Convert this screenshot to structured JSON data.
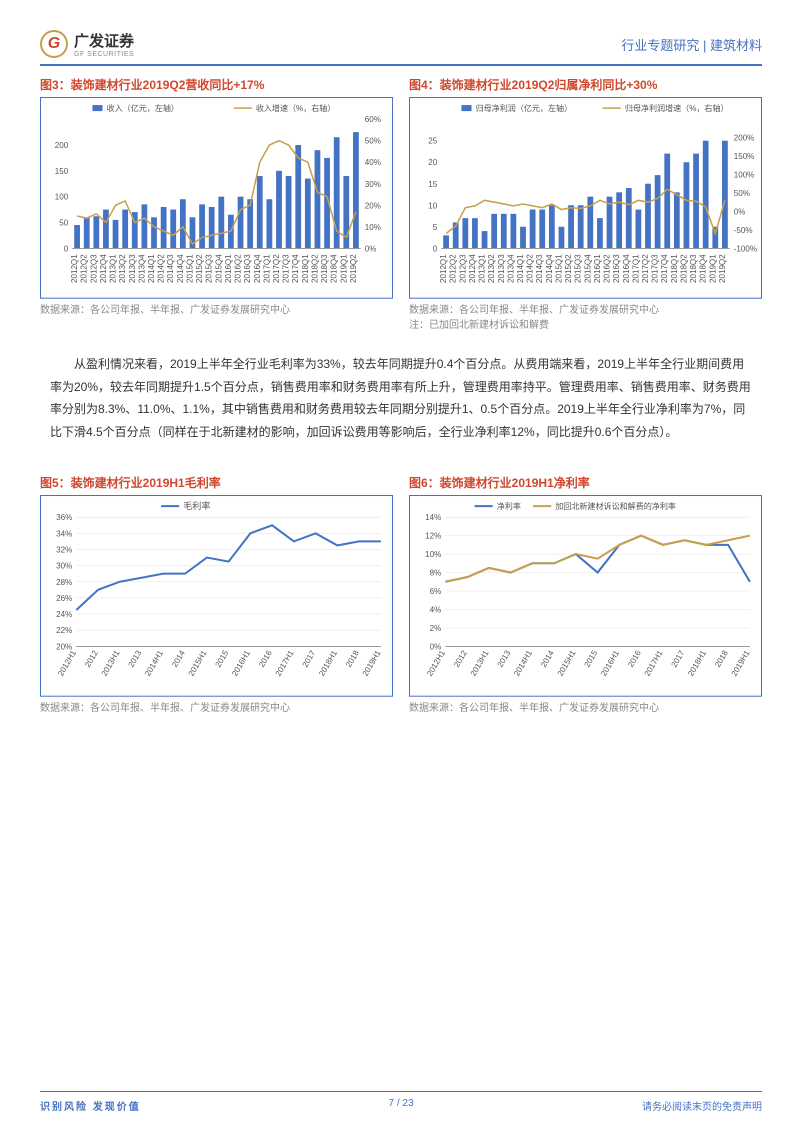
{
  "header": {
    "logo_text": "广发证券",
    "logo_sub": "GF SECURITIES",
    "logo_letter": "G",
    "right_text": "行业专题研究 | 建筑材料"
  },
  "chart3": {
    "title": "图3：装饰建材行业2019Q2营收同比+17%",
    "type": "bar+line",
    "legend_bar": "收入（亿元，左轴）",
    "legend_line": "收入增速（%，右轴）",
    "bar_color": "#4472c4",
    "line_color": "#c8a04a",
    "bg_color": "#ffffff",
    "grid_color": "#e0e0e0",
    "axis_color": "#333333",
    "label_color": "#555555",
    "label_fontsize": 8,
    "legend_fontsize": 8,
    "categories": [
      "2012Q1",
      "2012Q2",
      "2012Q3",
      "2012Q4",
      "2013Q1",
      "2013Q2",
      "2013Q3",
      "2013Q4",
      "2014Q1",
      "2014Q2",
      "2014Q3",
      "2014Q4",
      "2015Q1",
      "2015Q2",
      "2015Q3",
      "2015Q4",
      "2016Q1",
      "2016Q2",
      "2016Q3",
      "2016Q4",
      "2017Q1",
      "2017Q2",
      "2017Q3",
      "2017Q4",
      "2018Q1",
      "2018Q2",
      "2018Q3",
      "2018Q4",
      "2019Q1",
      "2019Q2"
    ],
    "bar_values": [
      45,
      60,
      62,
      75,
      55,
      75,
      70,
      85,
      60,
      80,
      75,
      95,
      60,
      85,
      80,
      100,
      65,
      100,
      95,
      140,
      95,
      150,
      140,
      200,
      135,
      190,
      175,
      215,
      140,
      225
    ],
    "line_values": [
      15,
      14,
      16,
      12,
      20,
      22,
      12,
      14,
      10,
      8,
      6,
      10,
      2,
      5,
      6,
      7,
      8,
      18,
      20,
      40,
      48,
      50,
      48,
      42,
      40,
      26,
      24,
      8,
      5,
      17
    ],
    "ylim_left": [
      0,
      250
    ],
    "ytick_left": [
      0,
      50,
      100,
      150,
      200
    ],
    "ylim_right": [
      0,
      60
    ],
    "ytick_right": [
      0,
      10,
      20,
      30,
      40,
      50,
      60
    ],
    "bar_width": 0.6,
    "source": "数据来源：各公司年报、半年报、广发证券发展研究中心"
  },
  "chart4": {
    "title": "图4：装饰建材行业2019Q2归属净利同比+30%",
    "type": "bar+line",
    "legend_bar": "归母净利润（亿元，左轴）",
    "legend_line": "归母净利润增速（%，右轴）",
    "bar_color": "#4472c4",
    "line_color": "#c8a04a",
    "bg_color": "#ffffff",
    "grid_color": "#e0e0e0",
    "axis_color": "#333333",
    "label_color": "#555555",
    "label_fontsize": 8,
    "legend_fontsize": 8,
    "categories": [
      "2012Q1",
      "2012Q2",
      "2012Q3",
      "2012Q4",
      "2013Q1",
      "2013Q2",
      "2013Q3",
      "2013Q4",
      "2014Q1",
      "2014Q2",
      "2014Q3",
      "2014Q4",
      "2015Q1",
      "2015Q2",
      "2015Q3",
      "2015Q4",
      "2016Q1",
      "2016Q2",
      "2016Q3",
      "2016Q4",
      "2017Q1",
      "2017Q2",
      "2017Q3",
      "2017Q4",
      "2018Q1",
      "2018Q2",
      "2018Q3",
      "2018Q4",
      "2019Q1",
      "2019Q2"
    ],
    "bar_values": [
      3,
      6,
      7,
      7,
      4,
      8,
      8,
      8,
      5,
      9,
      9,
      10,
      5,
      10,
      10,
      12,
      7,
      12,
      13,
      14,
      9,
      15,
      17,
      22,
      13,
      20,
      22,
      25,
      5,
      25
    ],
    "line_values": [
      -60,
      -40,
      10,
      15,
      30,
      25,
      20,
      15,
      20,
      15,
      10,
      20,
      5,
      10,
      8,
      15,
      30,
      20,
      25,
      18,
      30,
      25,
      35,
      60,
      45,
      30,
      28,
      12,
      -60,
      30
    ],
    "ylim_left": [
      0,
      30
    ],
    "ytick_left": [
      0,
      5,
      10,
      15,
      20,
      25
    ],
    "ylim_right": [
      -100,
      250
    ],
    "ytick_right": [
      -100,
      -50,
      0,
      50,
      100,
      150,
      200
    ],
    "bar_width": 0.6,
    "source": "数据来源：各公司年报、半年报、广发证券发展研究中心",
    "note": "注：已加回北新建材诉讼和解费"
  },
  "body_text": "从盈利情况来看，2019上半年全行业毛利率为33%，较去年同期提升0.4个百分点。从费用端来看，2019上半年全行业期间费用率为20%，较去年同期提升1.5个百分点，销售费用率和财务费用率有所上升，管理费用率持平。管理费用率、销售费用率、财务费用率分别为8.3%、11.0%、1.1%，其中销售费用和财务费用较去年同期分别提升1、0.5个百分点。2019上半年全行业净利率为7%，同比下滑4.5个百分点（同样在于北新建材的影响，加回诉讼费用等影响后，全行业净利率12%，同比提升0.6个百分点）。",
  "chart5": {
    "title": "图5：装饰建材行业2019H1毛利率",
    "type": "line",
    "legend_line": "毛利率",
    "line_color": "#4472c4",
    "bg_color": "#ffffff",
    "grid_color": "#e0e0e0",
    "axis_color": "#333333",
    "label_color": "#555555",
    "label_fontsize": 8,
    "legend_fontsize": 9,
    "categories": [
      "2012H1",
      "2012",
      "2013H1",
      "2013",
      "2014H1",
      "2014",
      "2015H1",
      "2015",
      "2016H1",
      "2016",
      "2017H1",
      "2017",
      "2018H1",
      "2018",
      "2019H1"
    ],
    "values": [
      24.5,
      27,
      28,
      28.5,
      29,
      29,
      31,
      30.5,
      34,
      35,
      33,
      34,
      32.5,
      33,
      33
    ],
    "ylim": [
      20,
      36
    ],
    "ytick": [
      20,
      22,
      24,
      26,
      28,
      30,
      32,
      34,
      36
    ],
    "ytick_suffix": "%",
    "line_width": 2,
    "marker": "none",
    "source": "数据来源：各公司年报、半年报、广发证券发展研究中心"
  },
  "chart6": {
    "title": "图6：装饰建材行业2019H1净利率",
    "type": "line",
    "legend_line1": "净利率",
    "legend_line2": "加回北新建材诉讼和解费的净利率",
    "line1_color": "#4472c4",
    "line2_color": "#c8a04a",
    "bg_color": "#ffffff",
    "grid_color": "#e0e0e0",
    "axis_color": "#333333",
    "label_color": "#555555",
    "label_fontsize": 8,
    "legend_fontsize": 8,
    "categories": [
      "2012H1",
      "2012",
      "2013H1",
      "2013",
      "2014H1",
      "2014",
      "2015H1",
      "2015",
      "2016H1",
      "2016",
      "2017H1",
      "2017",
      "2018H1",
      "2018",
      "2019H1"
    ],
    "values1": [
      7,
      7.5,
      8.5,
      8,
      9,
      9,
      10,
      8,
      11,
      12,
      11,
      11.5,
      11,
      11,
      7
    ],
    "values2": [
      7,
      7.5,
      8.5,
      8,
      9,
      9,
      10,
      9.5,
      11,
      12,
      11,
      11.5,
      11,
      11.5,
      12
    ],
    "ylim": [
      0,
      14
    ],
    "ytick": [
      0,
      2,
      4,
      6,
      8,
      10,
      12,
      14
    ],
    "ytick_suffix": "%",
    "line_width": 2,
    "marker": "none",
    "source": "数据来源：各公司年报、半年报、广发证券发展研究中心"
  },
  "footer": {
    "left": "识别风险 发现价值",
    "right": "请务必阅读末页的免责声明",
    "page": "7 / 23"
  }
}
